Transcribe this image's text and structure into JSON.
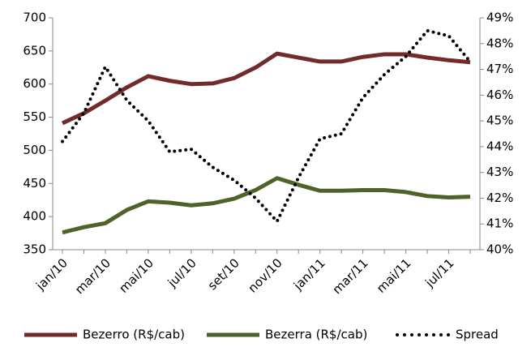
{
  "chart_data": {
    "type": "line",
    "categories": [
      "jan/10",
      null,
      "mar/10",
      null,
      "mai/10",
      null,
      "jul/10",
      null,
      "set/10",
      null,
      "nov/10",
      null,
      "jan/11",
      null,
      "mar/11",
      null,
      "mai/11",
      null,
      "jul/11",
      null
    ],
    "series": [
      {
        "name": "Bezerro (R$/cab)",
        "color": "#722b2b",
        "values": [
          541,
          556,
          575,
          595,
          612,
          605,
          600,
          601,
          609,
          625,
          646,
          640,
          634,
          634,
          641,
          645,
          645,
          640,
          636,
          633
        ]
      },
      {
        "name": "Bezerra (R$/cab)",
        "color": "#4f6228",
        "values": [
          376,
          384,
          390,
          410,
          423,
          421,
          417,
          420,
          427,
          440,
          458,
          448,
          439,
          439,
          440,
          440,
          437,
          431,
          429,
          430
        ]
      },
      {
        "name": "Spread",
        "color": "#000000",
        "axis": "y2",
        "dotted": true,
        "values": [
          44.2,
          45.3,
          47.1,
          45.8,
          45.0,
          43.8,
          43.9,
          43.2,
          42.7,
          42.0,
          41.1,
          42.8,
          44.3,
          44.5,
          45.9,
          46.8,
          47.5,
          48.5,
          48.3,
          47.3
        ]
      }
    ],
    "ylim": [
      350,
      700
    ],
    "yticks": [
      350,
      400,
      450,
      500,
      550,
      600,
      650,
      700
    ],
    "y2lim": [
      40,
      49
    ],
    "y2ticks": [
      {
        "value": 40,
        "label": "40%"
      },
      {
        "value": 41,
        "label": "41%"
      },
      {
        "value": 42,
        "label": "42%"
      },
      {
        "value": 43,
        "label": "43%"
      },
      {
        "value": 44,
        "label": "44%"
      },
      {
        "value": 45,
        "label": "45%"
      },
      {
        "value": 46,
        "label": "46%"
      },
      {
        "value": 47,
        "label": "47%"
      },
      {
        "value": 48,
        "label": "48%"
      },
      {
        "value": 49,
        "label": "49%"
      }
    ]
  }
}
